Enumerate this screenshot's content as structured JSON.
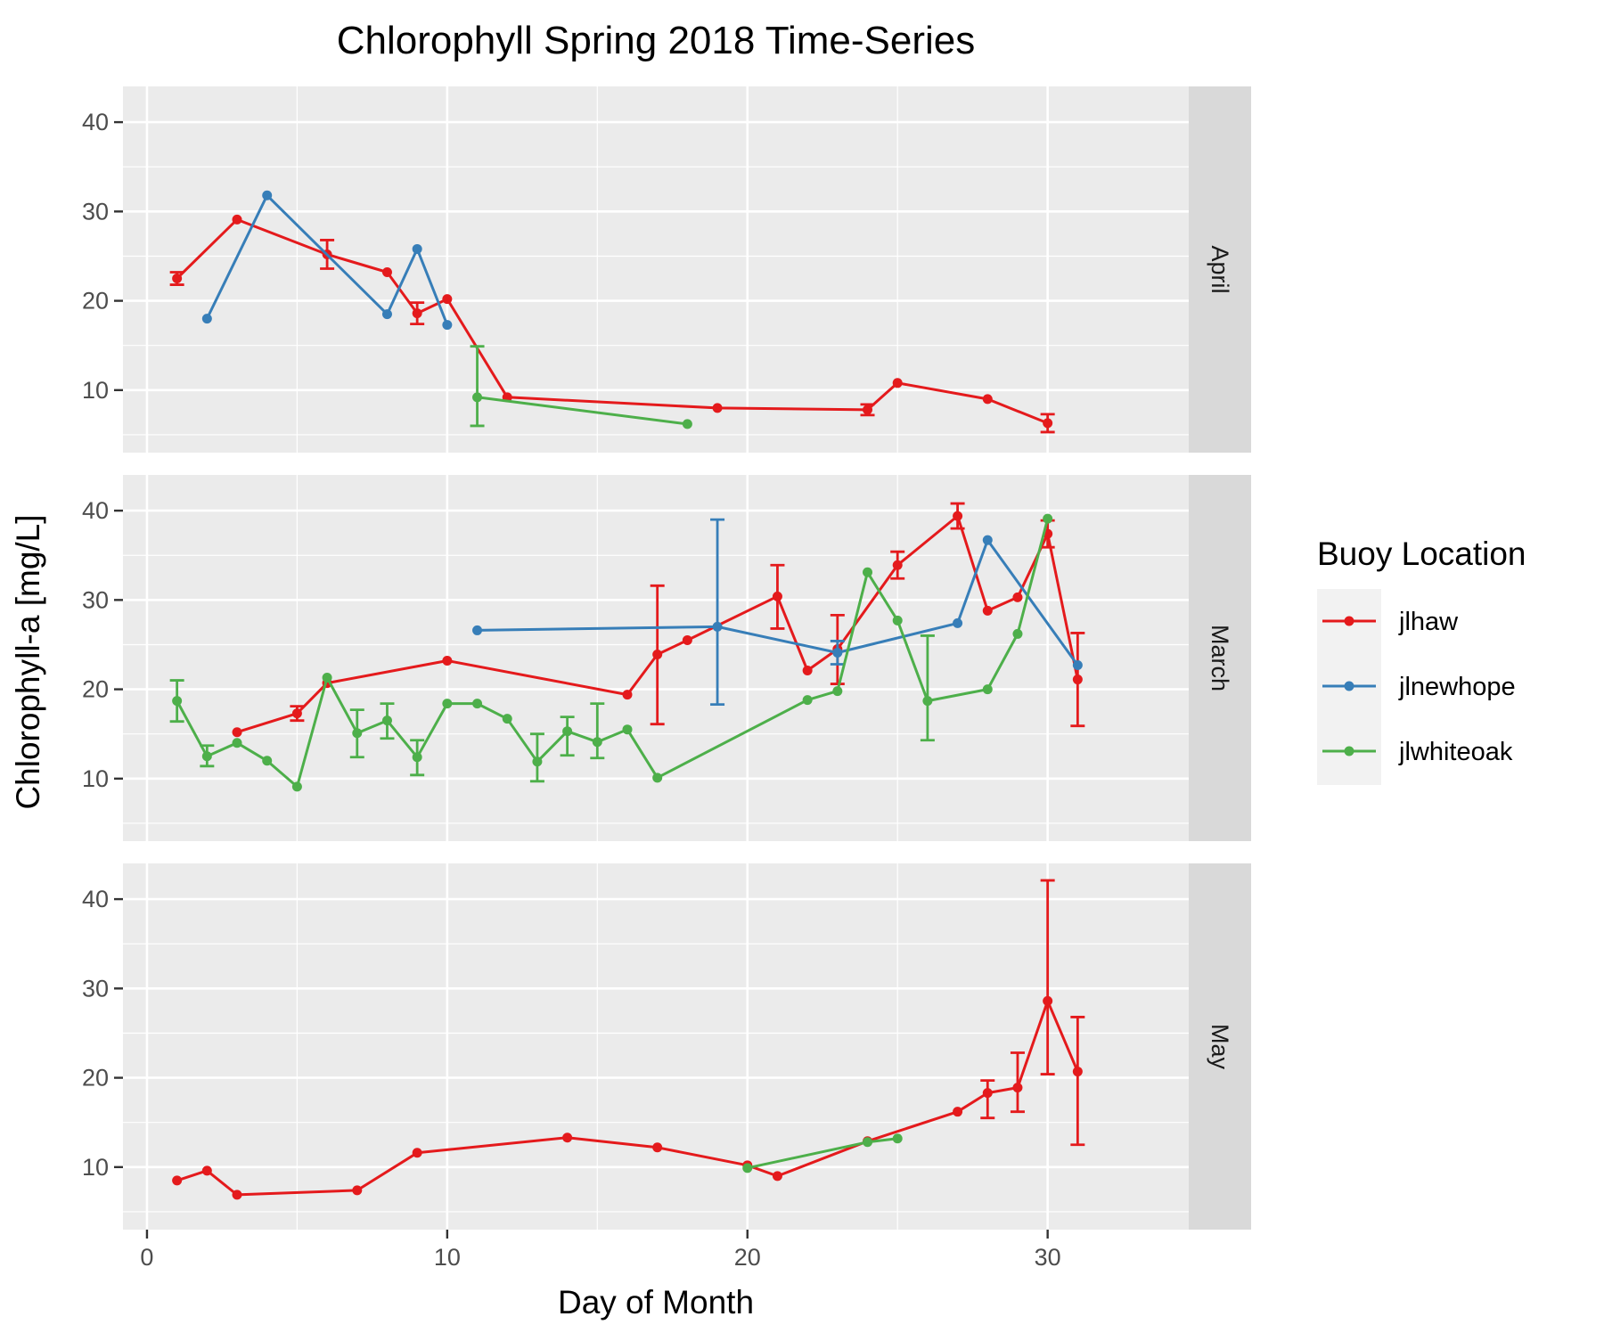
{
  "chart_data": {
    "type": "line",
    "title": "Chlorophyll Spring 2018 Time-Series",
    "xlabel": "Day of Month",
    "ylabel": "Chlorophyll-a [mg/L]",
    "xlim": [
      -0.8,
      34.7
    ],
    "ylim": [
      3,
      44
    ],
    "x_ticks": [
      0,
      10,
      20,
      30
    ],
    "y_ticks": [
      10,
      20,
      30,
      40
    ],
    "grid": true,
    "legend": {
      "title": "Buoy Location",
      "position": "right",
      "entries": [
        "jlhaw",
        "jlnewhope",
        "jlwhiteoak"
      ]
    },
    "colors": {
      "jlhaw": "#e41a1c",
      "jlnewhope": "#377eb8",
      "jlwhiteoak": "#4daf4a",
      "panel_bg": "#ebebeb",
      "strip_bg": "#d9d9d9",
      "grid": "#ffffff"
    },
    "facets": [
      {
        "label": "April",
        "series": [
          {
            "name": "jlhaw",
            "points": [
              {
                "x": 1,
                "y": 22.5,
                "lo": 21.8,
                "hi": 23.2
              },
              {
                "x": 3,
                "y": 29.1
              },
              {
                "x": 6,
                "y": 25.2,
                "lo": 23.6,
                "hi": 26.8
              },
              {
                "x": 8,
                "y": 23.2
              },
              {
                "x": 9,
                "y": 18.6,
                "lo": 17.4,
                "hi": 19.8
              },
              {
                "x": 10,
                "y": 20.2
              },
              {
                "x": 12,
                "y": 9.2
              },
              {
                "x": 19,
                "y": 8.0
              },
              {
                "x": 24,
                "y": 7.8,
                "lo": 7.2,
                "hi": 8.4
              },
              {
                "x": 25,
                "y": 10.8
              },
              {
                "x": 28,
                "y": 9.0
              },
              {
                "x": 30,
                "y": 6.3,
                "lo": 5.3,
                "hi": 7.3
              }
            ]
          },
          {
            "name": "jlnewhope",
            "points": [
              {
                "x": 2,
                "y": 18.0
              },
              {
                "x": 4,
                "y": 31.8
              },
              {
                "x": 8,
                "y": 18.5
              },
              {
                "x": 9,
                "y": 25.8
              },
              {
                "x": 10,
                "y": 17.3
              }
            ]
          },
          {
            "name": "jlwhiteoak",
            "points": [
              {
                "x": 11,
                "y": 9.2,
                "lo": 6.0,
                "hi": 14.9
              },
              {
                "x": 18,
                "y": 6.2
              }
            ]
          }
        ]
      },
      {
        "label": "March",
        "series": [
          {
            "name": "jlhaw",
            "points": [
              {
                "x": 3,
                "y": 15.2
              },
              {
                "x": 5,
                "y": 17.3,
                "lo": 16.5,
                "hi": 18.1
              },
              {
                "x": 6,
                "y": 20.7
              },
              {
                "x": 10,
                "y": 23.2
              },
              {
                "x": 16,
                "y": 19.4
              },
              {
                "x": 17,
                "y": 23.9,
                "lo": 16.1,
                "hi": 31.6
              },
              {
                "x": 18,
                "y": 25.5
              },
              {
                "x": 21,
                "y": 30.4,
                "lo": 26.8,
                "hi": 33.9
              },
              {
                "x": 22,
                "y": 22.1
              },
              {
                "x": 23,
                "y": 24.5,
                "lo": 20.6,
                "hi": 28.3
              },
              {
                "x": 25,
                "y": 33.9,
                "lo": 32.4,
                "hi": 35.4
              },
              {
                "x": 27,
                "y": 39.4,
                "lo": 38.0,
                "hi": 40.8
              },
              {
                "x": 28,
                "y": 28.8
              },
              {
                "x": 29,
                "y": 30.3
              },
              {
                "x": 30,
                "y": 37.4,
                "lo": 35.9,
                "hi": 38.9
              },
              {
                "x": 31,
                "y": 21.1,
                "lo": 15.9,
                "hi": 26.3
              }
            ]
          },
          {
            "name": "jlnewhope",
            "points": [
              {
                "x": 11,
                "y": 26.6
              },
              {
                "x": 19,
                "y": 27.0,
                "lo": 18.3,
                "hi": 39.0
              },
              {
                "x": 23,
                "y": 24.1,
                "lo": 22.8,
                "hi": 25.4
              },
              {
                "x": 27,
                "y": 27.4
              },
              {
                "x": 28,
                "y": 36.7
              },
              {
                "x": 31,
                "y": 22.7
              }
            ]
          },
          {
            "name": "jlwhiteoak",
            "points": [
              {
                "x": 1,
                "y": 18.7,
                "lo": 16.4,
                "hi": 21.0
              },
              {
                "x": 2,
                "y": 12.5,
                "lo": 11.4,
                "hi": 13.7
              },
              {
                "x": 3,
                "y": 14.0
              },
              {
                "x": 4,
                "y": 12.0
              },
              {
                "x": 5,
                "y": 9.1
              },
              {
                "x": 6,
                "y": 21.3
              },
              {
                "x": 7,
                "y": 15.1,
                "lo": 12.4,
                "hi": 17.7
              },
              {
                "x": 8,
                "y": 16.5,
                "lo": 14.5,
                "hi": 18.4
              },
              {
                "x": 9,
                "y": 12.4,
                "lo": 10.4,
                "hi": 14.3
              },
              {
                "x": 10,
                "y": 18.4
              },
              {
                "x": 11,
                "y": 18.4
              },
              {
                "x": 12,
                "y": 16.7
              },
              {
                "x": 13,
                "y": 11.9,
                "lo": 9.7,
                "hi": 15.0
              },
              {
                "x": 14,
                "y": 15.3,
                "lo": 12.6,
                "hi": 16.9
              },
              {
                "x": 15,
                "y": 14.1,
                "lo": 12.3,
                "hi": 18.4
              },
              {
                "x": 16,
                "y": 15.5
              },
              {
                "x": 17,
                "y": 10.1
              },
              {
                "x": 22,
                "y": 18.8
              },
              {
                "x": 23,
                "y": 19.8
              },
              {
                "x": 24,
                "y": 33.1
              },
              {
                "x": 25,
                "y": 27.7
              },
              {
                "x": 26,
                "y": 18.7,
                "lo": 14.3,
                "hi": 26.0
              },
              {
                "x": 28,
                "y": 20.0
              },
              {
                "x": 29,
                "y": 26.2
              },
              {
                "x": 30,
                "y": 39.1
              }
            ]
          }
        ]
      },
      {
        "label": "May",
        "series": [
          {
            "name": "jlhaw",
            "points": [
              {
                "x": 1,
                "y": 8.5
              },
              {
                "x": 2,
                "y": 9.6
              },
              {
                "x": 3,
                "y": 6.9
              },
              {
                "x": 7,
                "y": 7.4
              },
              {
                "x": 9,
                "y": 11.6
              },
              {
                "x": 14,
                "y": 13.3
              },
              {
                "x": 17,
                "y": 12.2
              },
              {
                "x": 20,
                "y": 10.2
              },
              {
                "x": 21,
                "y": 9.0
              },
              {
                "x": 24,
                "y": 12.9
              },
              {
                "x": 27,
                "y": 16.2
              },
              {
                "x": 28,
                "y": 18.3,
                "lo": 15.5,
                "hi": 19.7
              },
              {
                "x": 29,
                "y": 18.9,
                "lo": 16.2,
                "hi": 22.8
              },
              {
                "x": 30,
                "y": 28.6,
                "lo": 20.4,
                "hi": 42.1
              },
              {
                "x": 31,
                "y": 20.7,
                "lo": 12.5,
                "hi": 26.8
              }
            ]
          },
          {
            "name": "jlwhiteoak",
            "points": [
              {
                "x": 20,
                "y": 9.9
              },
              {
                "x": 24,
                "y": 12.8
              },
              {
                "x": 25,
                "y": 13.2
              }
            ]
          }
        ]
      }
    ]
  }
}
